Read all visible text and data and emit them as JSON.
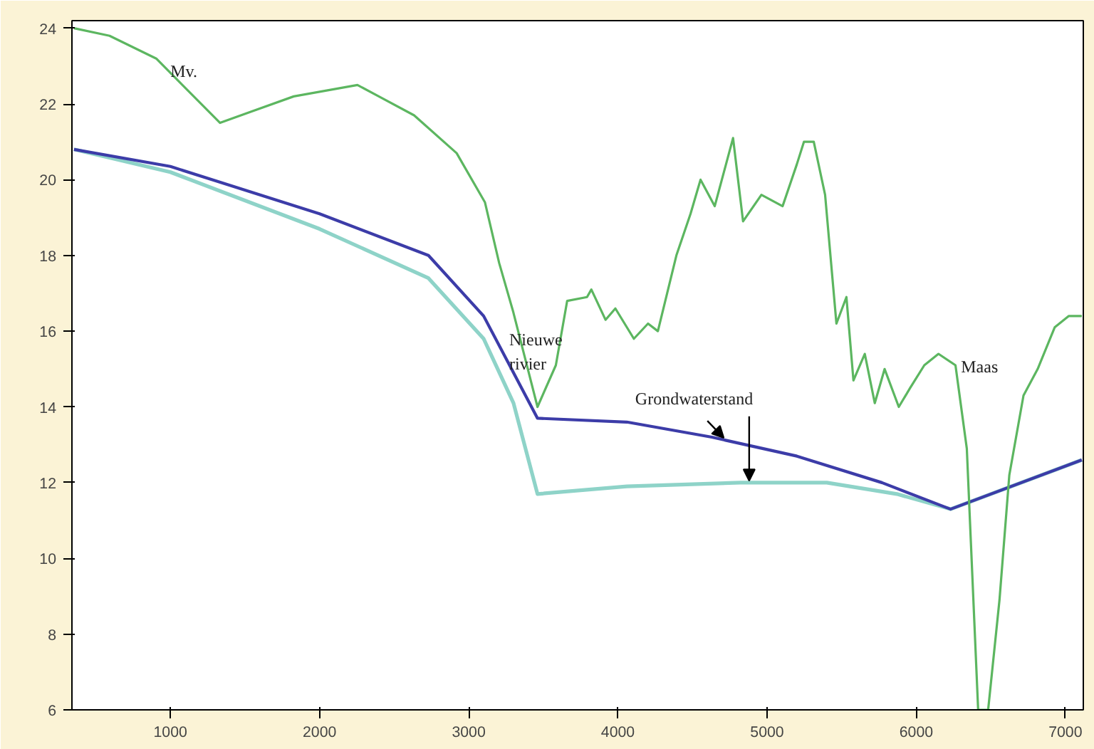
{
  "chart_data": {
    "type": "line",
    "xlim": [
      340,
      7120
    ],
    "ylim": [
      6,
      24.2
    ],
    "xticks": [
      1000,
      2000,
      3000,
      4000,
      5000,
      6000,
      7000
    ],
    "yticks": [
      6,
      8,
      10,
      12,
      14,
      16,
      18,
      20,
      22,
      24
    ],
    "grid": false,
    "marker": "none",
    "line_style": "solid",
    "series": [
      {
        "color": "#5cb660",
        "x": [
          354,
          592,
          905,
          1333,
          1542,
          1827,
          2254,
          2397,
          2634,
          2919,
          3109,
          3204,
          3299,
          3461,
          3584,
          3660,
          3793,
          3822,
          3917,
          3983,
          4107,
          4202,
          4268,
          4392,
          4487,
          4554,
          4649,
          4772,
          4839,
          4962,
          5104,
          5199,
          5247,
          5313,
          5389,
          5465,
          5532,
          5579,
          5655,
          5722,
          5788,
          5883,
          5959,
          6054,
          6149,
          6263,
          6339,
          6415,
          6482,
          6558,
          6624,
          6719,
          6814,
          6928,
          7023,
          7110
        ],
        "values": [
          24.0,
          23.8,
          23.2,
          21.5,
          21.8,
          22.2,
          22.5,
          22.2,
          21.7,
          20.7,
          19.4,
          17.8,
          16.5,
          14.0,
          15.1,
          16.8,
          16.9,
          17.1,
          16.3,
          16.6,
          15.8,
          16.2,
          16.0,
          18.0,
          19.1,
          20.0,
          19.3,
          21.1,
          18.9,
          19.6,
          19.3,
          20.4,
          21.0,
          21.0,
          19.6,
          16.2,
          16.9,
          14.7,
          15.4,
          14.1,
          15.0,
          14.0,
          14.5,
          15.1,
          15.4,
          15.1,
          12.9,
          6.0,
          6.0,
          8.9,
          12.2,
          14.3,
          15.0,
          16.1,
          16.4,
          16.4
        ]
      },
      {
        "color": "#3c3ca8",
        "x": [
          354,
          1000,
          2000,
          2730,
          3100,
          3461,
          4060,
          4630,
          5200,
          5770,
          6230,
          7110
        ],
        "values": [
          20.8,
          20.35,
          19.1,
          18.0,
          16.4,
          13.7,
          13.6,
          13.2,
          12.7,
          12.0,
          11.3,
          12.6
        ]
      },
      {
        "color": "#8ed3c8",
        "x": [
          354,
          1000,
          2000,
          2730,
          3100,
          3300,
          3461,
          4060,
          4820,
          5400,
          5870,
          6230,
          7110
        ],
        "values": [
          20.8,
          20.2,
          18.7,
          17.4,
          15.8,
          14.1,
          11.7,
          11.9,
          12.0,
          12.0,
          11.7,
          11.3,
          12.6
        ]
      }
    ],
    "annotations": [
      {
        "text": "Mv.",
        "x": 1000,
        "y": 22.6
      },
      "Nieuwe\nrivier",
      {
        "text": "Grondwaterstand",
        "x": 4880,
        "y": 12.0
      },
      {
        "text": "Maas",
        "x": 6300,
        "y": 14.8
      }
    ]
  }
}
